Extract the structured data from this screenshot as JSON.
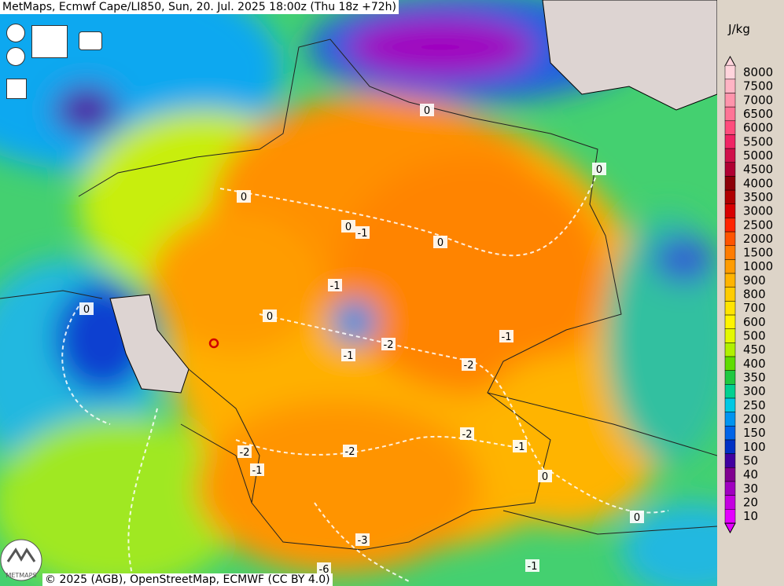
{
  "header": {
    "title": "MetMaps, Ecmwf Cape/LI850, Sun, 20. Jul. 2025 18:00z (Thu 18z +72h)"
  },
  "legend": {
    "unit": "J/kg",
    "levels": [
      {
        "value": 8000,
        "color": "#ffd4dc"
      },
      {
        "value": 7500,
        "color": "#ffb4c4"
      },
      {
        "value": 7000,
        "color": "#ff94ac"
      },
      {
        "value": 6500,
        "color": "#ff7496"
      },
      {
        "value": 6000,
        "color": "#ff4c7c"
      },
      {
        "value": 5500,
        "color": "#f02464"
      },
      {
        "value": 5000,
        "color": "#d0104a"
      },
      {
        "value": 4500,
        "color": "#b00032"
      },
      {
        "value": 4000,
        "color": "#8c0008"
      },
      {
        "value": 3500,
        "color": "#b00000"
      },
      {
        "value": 3000,
        "color": "#d80000"
      },
      {
        "value": 2500,
        "color": "#ff2400"
      },
      {
        "value": 2000,
        "color": "#ff5400"
      },
      {
        "value": 1500,
        "color": "#ff7c00"
      },
      {
        "value": 1000,
        "color": "#ff9c00"
      },
      {
        "value": 900,
        "color": "#ffb400"
      },
      {
        "value": 800,
        "color": "#ffcc00"
      },
      {
        "value": 700,
        "color": "#ffe400"
      },
      {
        "value": 600,
        "color": "#fff400"
      },
      {
        "value": 500,
        "color": "#e4f800"
      },
      {
        "value": 450,
        "color": "#b0f000"
      },
      {
        "value": 400,
        "color": "#60dc00"
      },
      {
        "value": 350,
        "color": "#20c840"
      },
      {
        "value": 300,
        "color": "#00d090"
      },
      {
        "value": 250,
        "color": "#00c8e4"
      },
      {
        "value": 200,
        "color": "#0094f0"
      },
      {
        "value": 150,
        "color": "#0064e8"
      },
      {
        "value": 100,
        "color": "#0030c4"
      },
      {
        "value": 50,
        "color": "#4000a0"
      },
      {
        "value": 40,
        "color": "#800090"
      },
      {
        "value": 30,
        "color": "#a000c0"
      },
      {
        "value": 20,
        "color": "#c400e0"
      },
      {
        "value": 10,
        "color": "#e400ff"
      }
    ]
  },
  "contour_labels": [
    "0",
    "0",
    "0",
    "0",
    "-1",
    "0",
    "-1",
    "0",
    "0",
    "-1",
    "-2",
    "-1",
    "-2",
    "-2",
    "-1",
    "-2",
    "-2",
    "-1",
    "0",
    "0",
    "-3",
    "-1",
    "-6"
  ],
  "logo": "METMAPS",
  "footer": {
    "copyright": "© 2025 (AGB), OpenStreetMap, ECMWF (CC BY 4.0)"
  }
}
